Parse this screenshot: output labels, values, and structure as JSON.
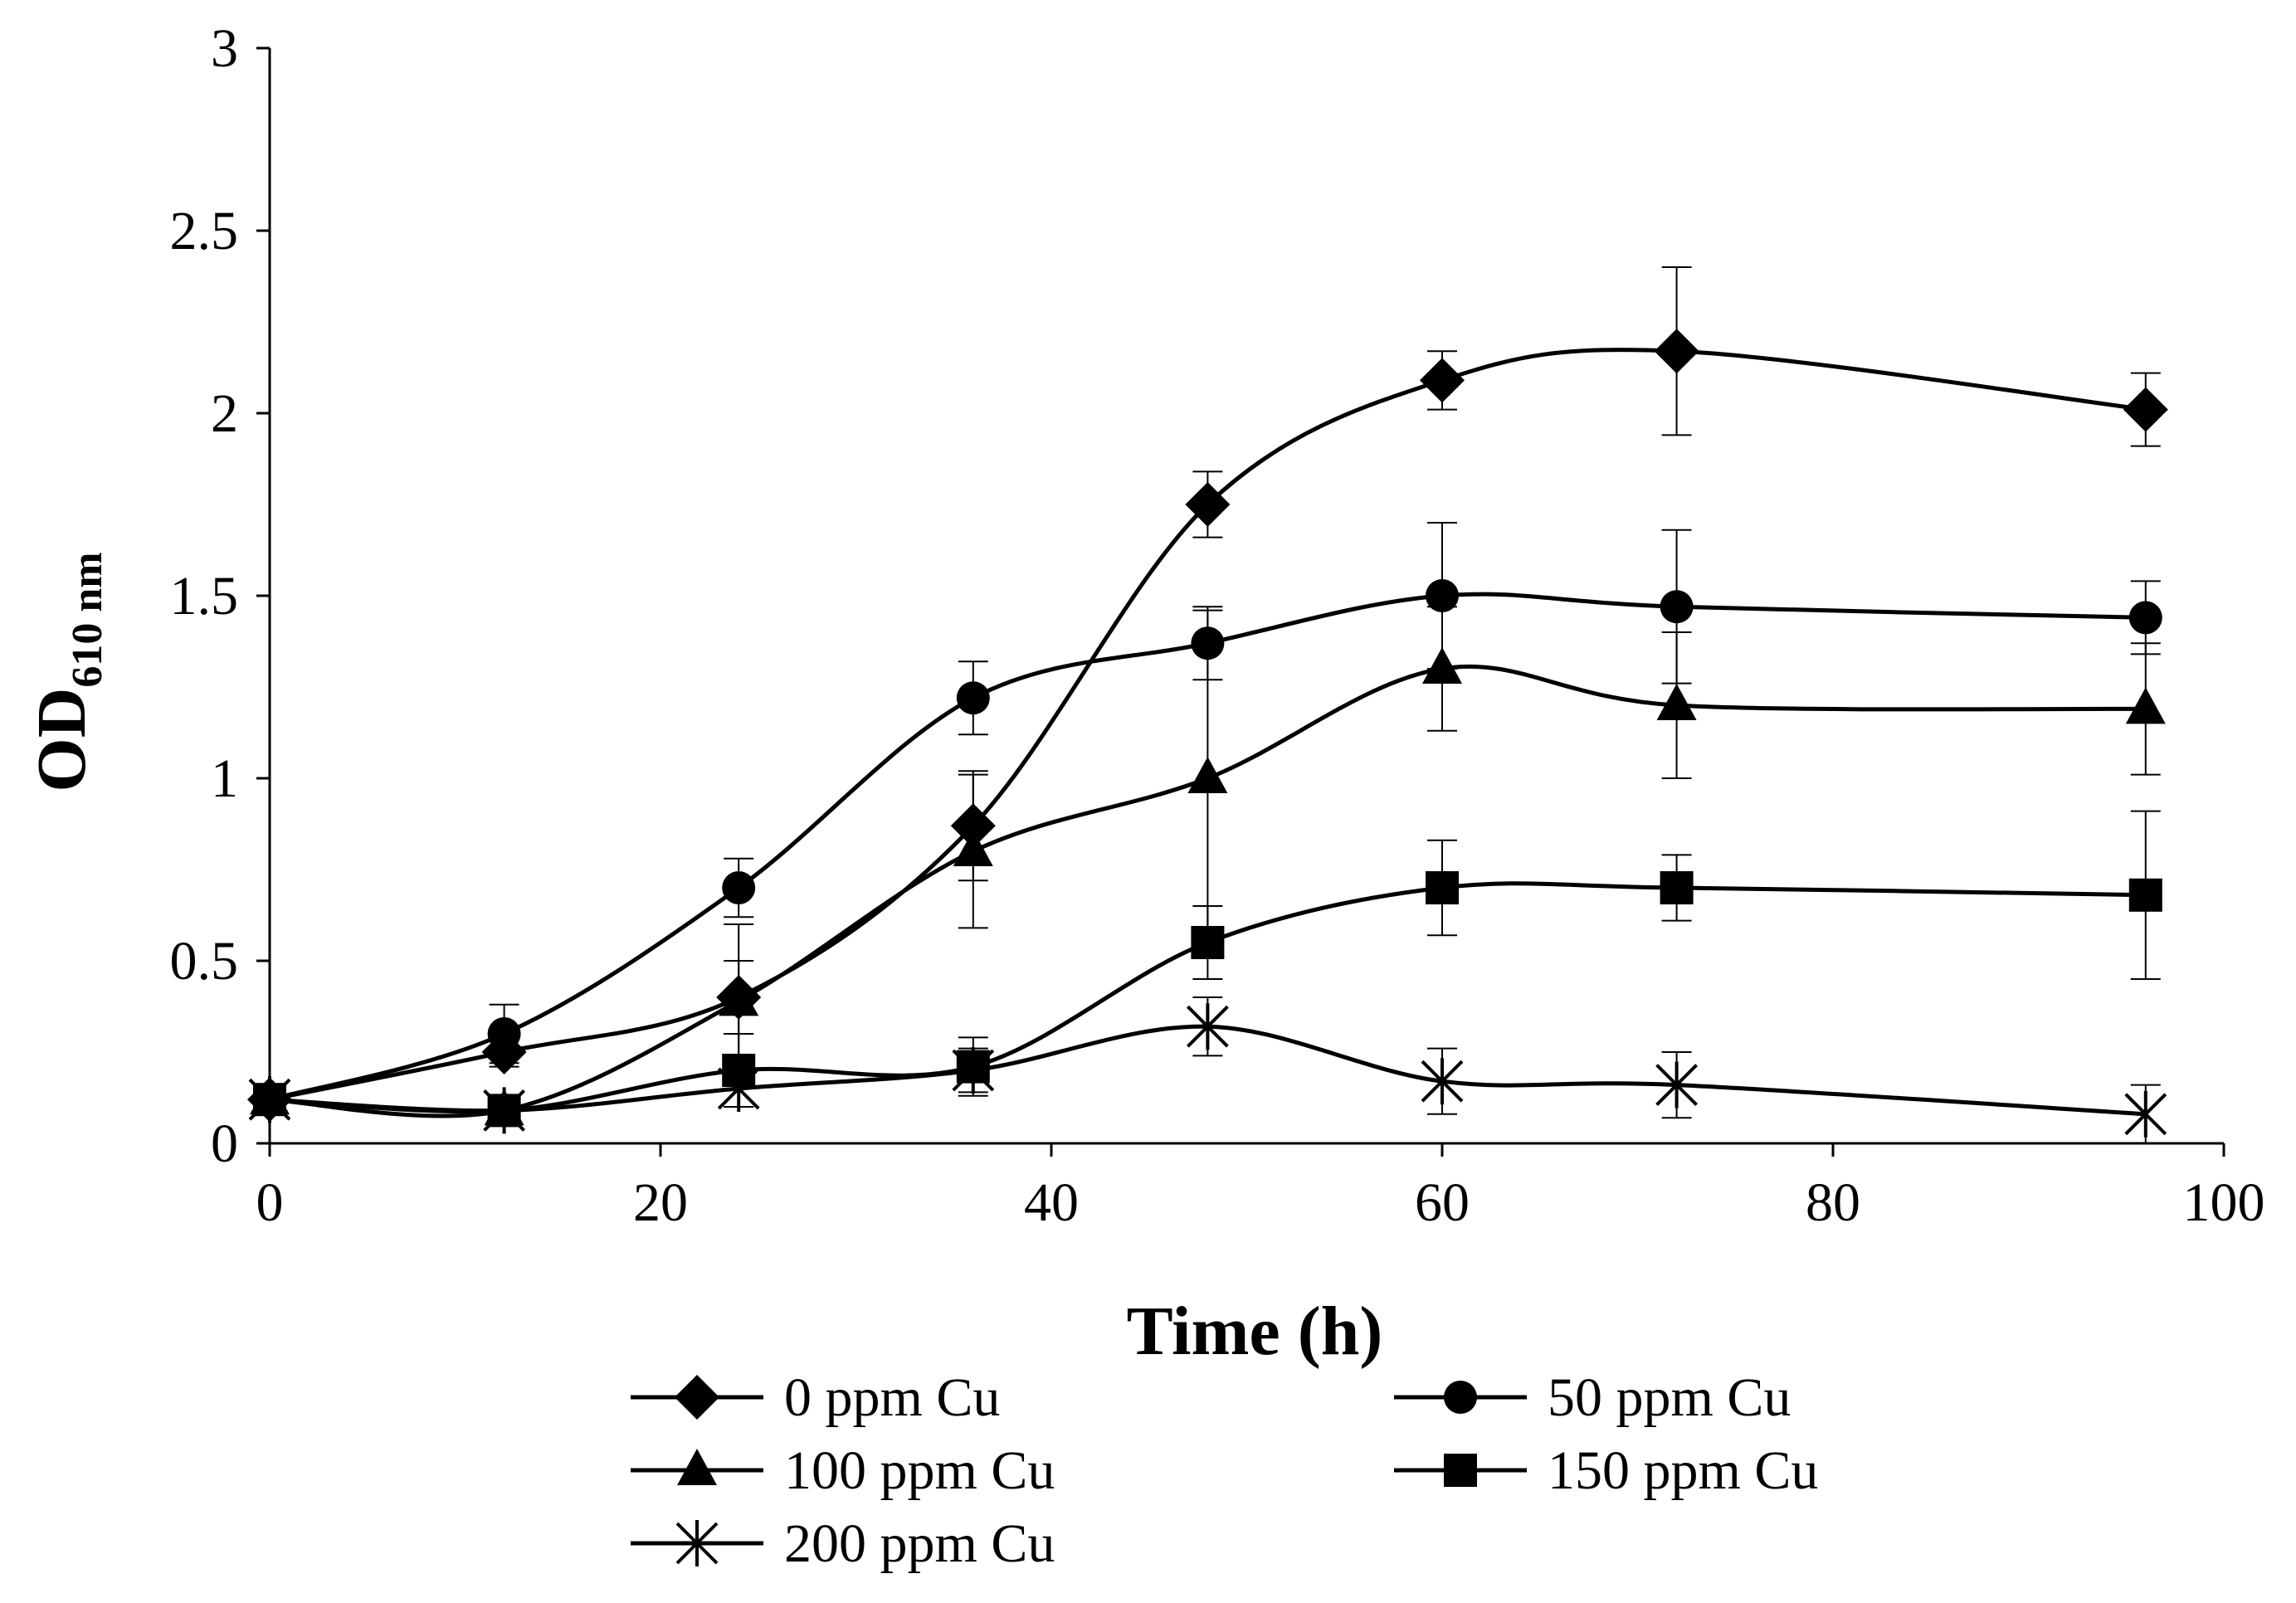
{
  "chart_data": {
    "type": "line",
    "title": "",
    "xlabel": "Time (h)",
    "ylabel": "OD",
    "ylabel_subscript": "610 nm",
    "xlim": [
      0,
      100
    ],
    "ylim": [
      0,
      3
    ],
    "x_ticks": [
      0,
      20,
      40,
      60,
      80,
      100
    ],
    "y_ticks": [
      0,
      0.5,
      1,
      1.5,
      2,
      2.5,
      3
    ],
    "x_tick_labels": [
      "0",
      "20",
      "40",
      "60",
      "80",
      "100"
    ],
    "y_tick_labels": [
      "0",
      "0.5",
      "1",
      "1.5",
      "2",
      "2.5",
      "3"
    ],
    "grid": false,
    "legend_position": "bottom",
    "x": [
      0,
      12,
      24,
      36,
      48,
      60,
      72,
      96
    ],
    "series": [
      {
        "name": "0 ppm Cu",
        "marker": "diamond",
        "values": [
          0.12,
          0.25,
          0.4,
          0.87,
          1.75,
          2.09,
          2.17,
          2.01
        ],
        "errors": [
          0.02,
          0.04,
          0.1,
          0.15,
          0.09,
          0.08,
          0.23,
          0.1
        ]
      },
      {
        "name": "50 ppm Cu",
        "marker": "circle",
        "values": [
          0.12,
          0.3,
          0.7,
          1.22,
          1.37,
          1.5,
          1.47,
          1.44
        ],
        "errors": [
          0.02,
          0.08,
          0.08,
          0.1,
          0.1,
          0.2,
          0.21,
          0.1
        ]
      },
      {
        "name": "100 ppm Cu",
        "marker": "triangle",
        "values": [
          0.12,
          0.09,
          0.39,
          0.8,
          1.0,
          1.3,
          1.2,
          1.19
        ],
        "errors": [
          0.02,
          0.03,
          0.21,
          0.21,
          0.46,
          0.17,
          0.2,
          0.18
        ]
      },
      {
        "name": "150 ppm Cu",
        "marker": "square",
        "values": [
          0.12,
          0.09,
          0.2,
          0.21,
          0.55,
          0.7,
          0.7,
          0.68
        ],
        "errors": [
          0.02,
          0.03,
          0.1,
          0.08,
          0.1,
          0.13,
          0.09,
          0.23
        ]
      },
      {
        "name": "200 ppm Cu",
        "marker": "asterisk",
        "values": [
          0.12,
          0.09,
          0.15,
          0.2,
          0.32,
          0.17,
          0.16,
          0.08
        ],
        "errors": [
          0.02,
          0.02,
          0.05,
          0.06,
          0.08,
          0.09,
          0.09,
          0.08
        ]
      }
    ]
  }
}
